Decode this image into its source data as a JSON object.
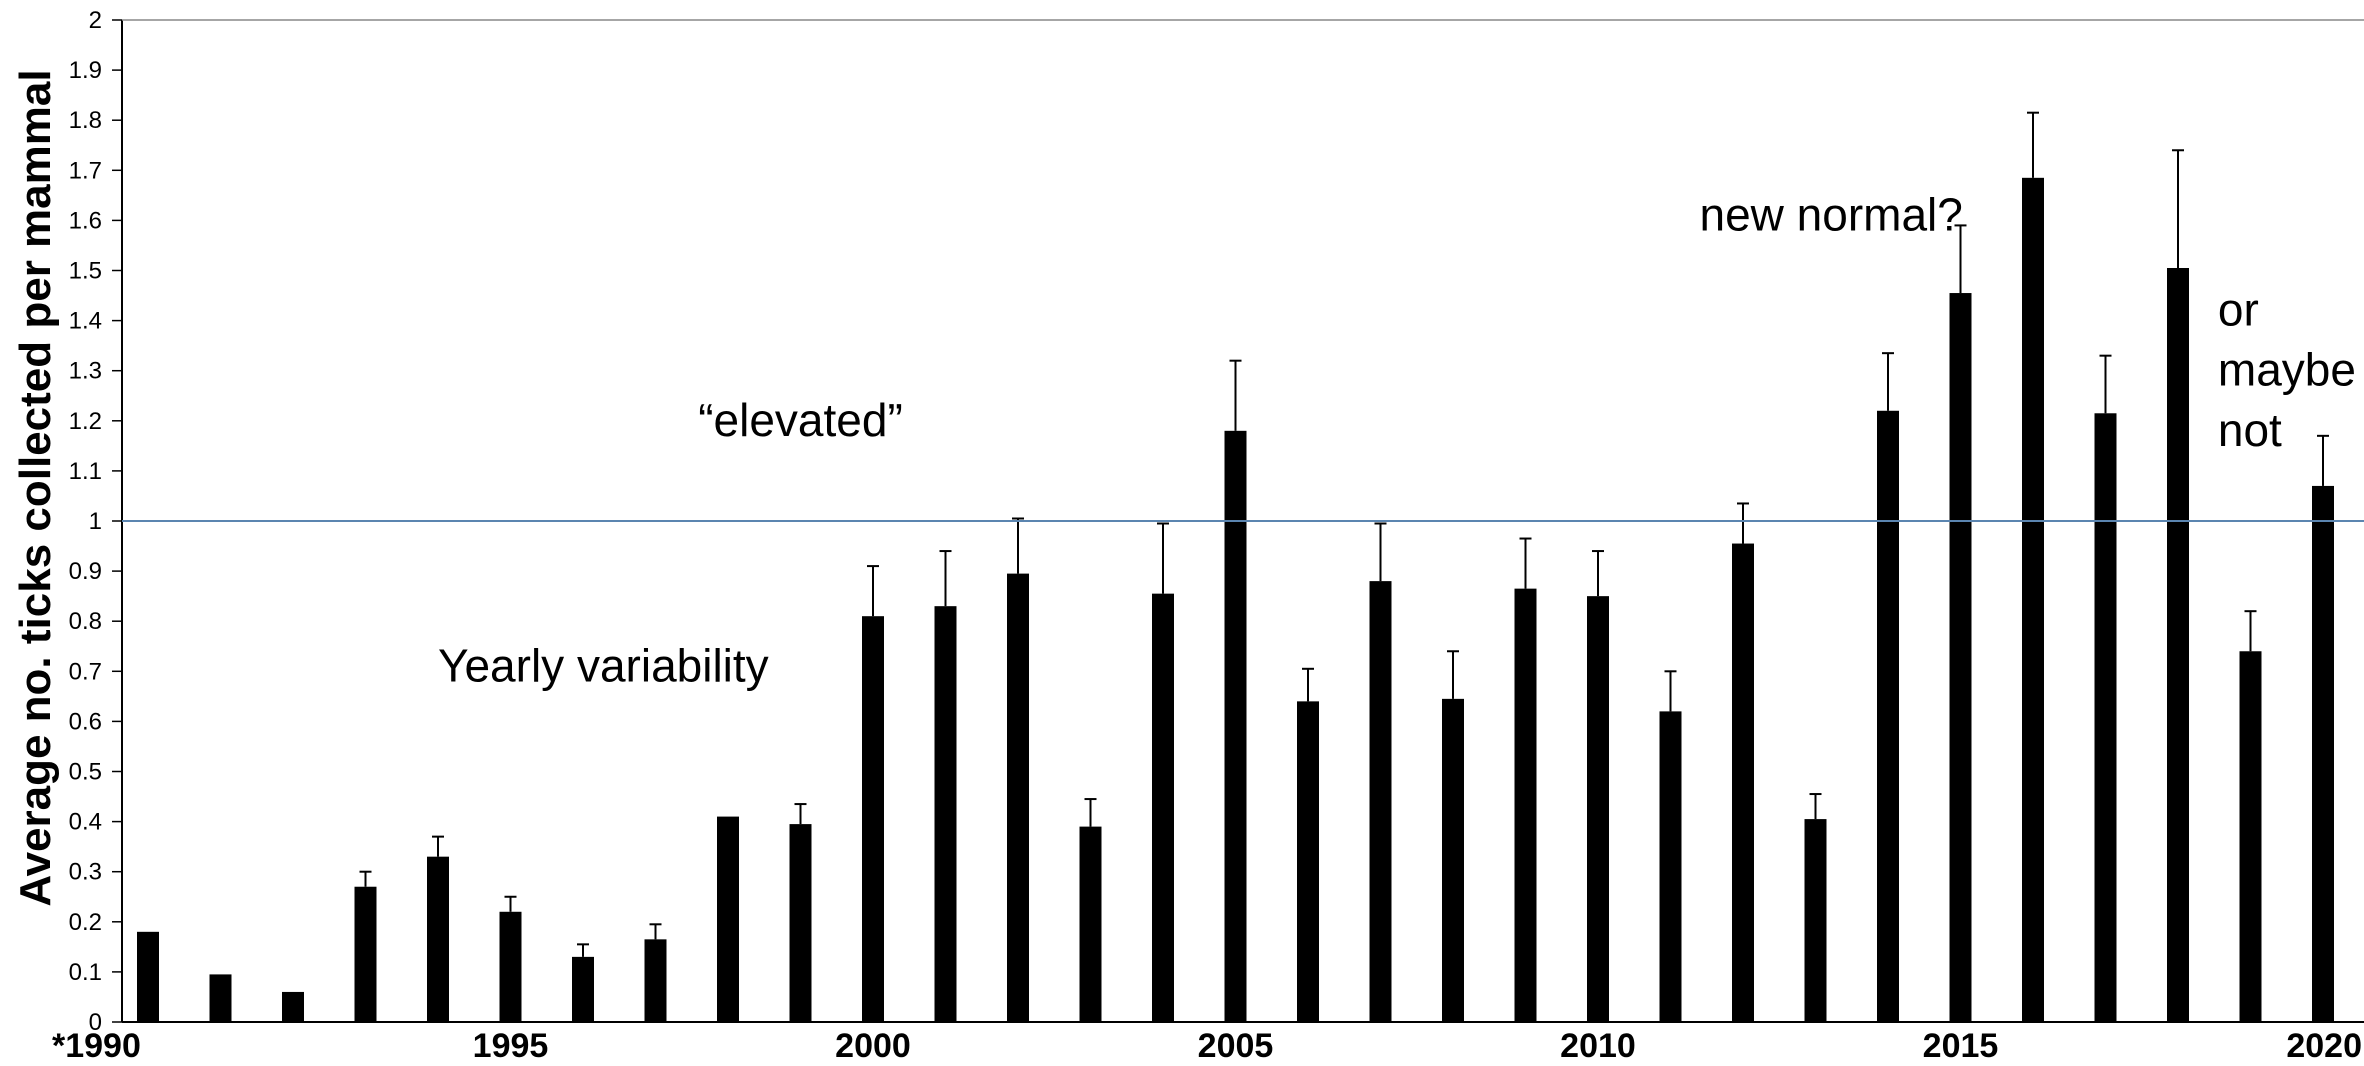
{
  "chart_data": {
    "type": "bar",
    "title": "",
    "xlabel": "",
    "ylabel": "Average no. ticks collected per mammal",
    "ylim": [
      0,
      2
    ],
    "yticks": [
      "0",
      "0.1",
      "0.2",
      "0.3",
      "0.4",
      "0.5",
      "0.6",
      "0.7",
      "0.8",
      "0.9",
      "1",
      "1.1",
      "1.2",
      "1.3",
      "1.4",
      "1.5",
      "1.6",
      "1.7",
      "1.8",
      "1.9",
      "2"
    ],
    "x_tick_labels": [
      "*1990",
      "1995",
      "2000",
      "2005",
      "2010",
      "2015",
      "2020"
    ],
    "grid": false,
    "reference_line": {
      "y": 1,
      "color": "#5B85B0"
    },
    "categories": [
      "1990",
      "1991",
      "1992",
      "1993",
      "1994",
      "1995",
      "1996",
      "1997",
      "1998",
      "1999",
      "2000",
      "2001",
      "2002",
      "2003",
      "2004",
      "2005",
      "2006",
      "2007",
      "2008",
      "2009",
      "2010",
      "2011",
      "2012",
      "2013",
      "2014",
      "2015",
      "2016",
      "2017",
      "2018",
      "2019",
      "2020"
    ],
    "values": [
      0.18,
      0.095,
      0.06,
      0.27,
      0.33,
      0.22,
      0.13,
      0.165,
      0.41,
      0.395,
      0.81,
      0.83,
      0.895,
      0.39,
      0.855,
      1.18,
      0.64,
      0.88,
      0.645,
      0.865,
      0.85,
      0.62,
      0.955,
      0.405,
      1.22,
      1.455,
      1.685,
      1.215,
      1.505,
      0.74,
      1.07
    ],
    "error_upper": [
      null,
      null,
      null,
      0.3,
      0.37,
      0.25,
      0.155,
      0.195,
      null,
      0.435,
      0.91,
      0.94,
      1.005,
      0.445,
      0.995,
      1.32,
      0.705,
      0.995,
      0.74,
      0.965,
      0.94,
      0.7,
      1.035,
      0.455,
      1.335,
      1.59,
      1.815,
      1.33,
      1.74,
      0.82,
      1.17
    ],
    "bar_color": "#000000",
    "annotations": [
      {
        "text": "Yearly variability",
        "x": 1994.0,
        "y": 0.68,
        "anchor": "start"
      },
      {
        "text": "“elevated”",
        "x": 1999.0,
        "y": 1.17,
        "anchor": "middle"
      },
      {
        "text": "new normal?",
        "x": 2011.4,
        "y": 1.58,
        "anchor": "start"
      },
      {
        "text": "or",
        "x": 2018.55,
        "y": 1.39,
        "anchor": "start"
      },
      {
        "text": "maybe",
        "x": 2018.55,
        "y": 1.27,
        "anchor": "start"
      },
      {
        "text": "not",
        "x": 2018.55,
        "y": 1.15,
        "anchor": "start"
      }
    ]
  }
}
